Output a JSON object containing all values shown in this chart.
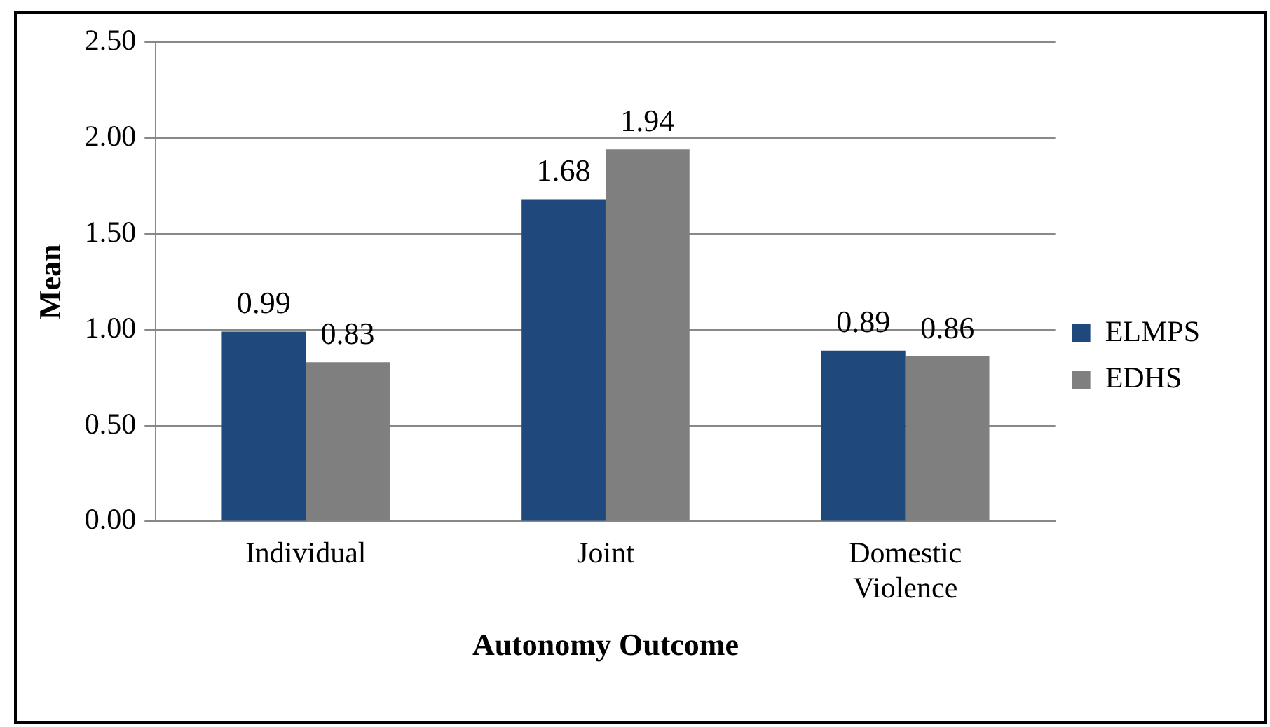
{
  "chart_data": {
    "type": "bar",
    "xlabel": "Autonomy Outcome",
    "ylabel": "Mean",
    "categories": [
      "Individual",
      "Joint",
      "Domestic Violence"
    ],
    "series": [
      {
        "name": "ELMPS",
        "color": "#1f497d",
        "values": [
          0.99,
          1.68,
          0.89
        ]
      },
      {
        "name": "EDHS",
        "color": "#7f7f7f",
        "values": [
          0.83,
          1.94,
          0.86
        ]
      }
    ],
    "ylim": [
      0,
      2.5
    ],
    "yticks": [
      {
        "value": 0,
        "label": "0.00"
      },
      {
        "value": 0.5,
        "label": "0.50"
      },
      {
        "value": 1,
        "label": "1.00"
      },
      {
        "value": 1.5,
        "label": "1.50"
      },
      {
        "value": 2,
        "label": "2.00"
      },
      {
        "value": 2.5,
        "label": "2.50"
      }
    ],
    "grid": "y",
    "legend": "right",
    "data_labels": true
  }
}
